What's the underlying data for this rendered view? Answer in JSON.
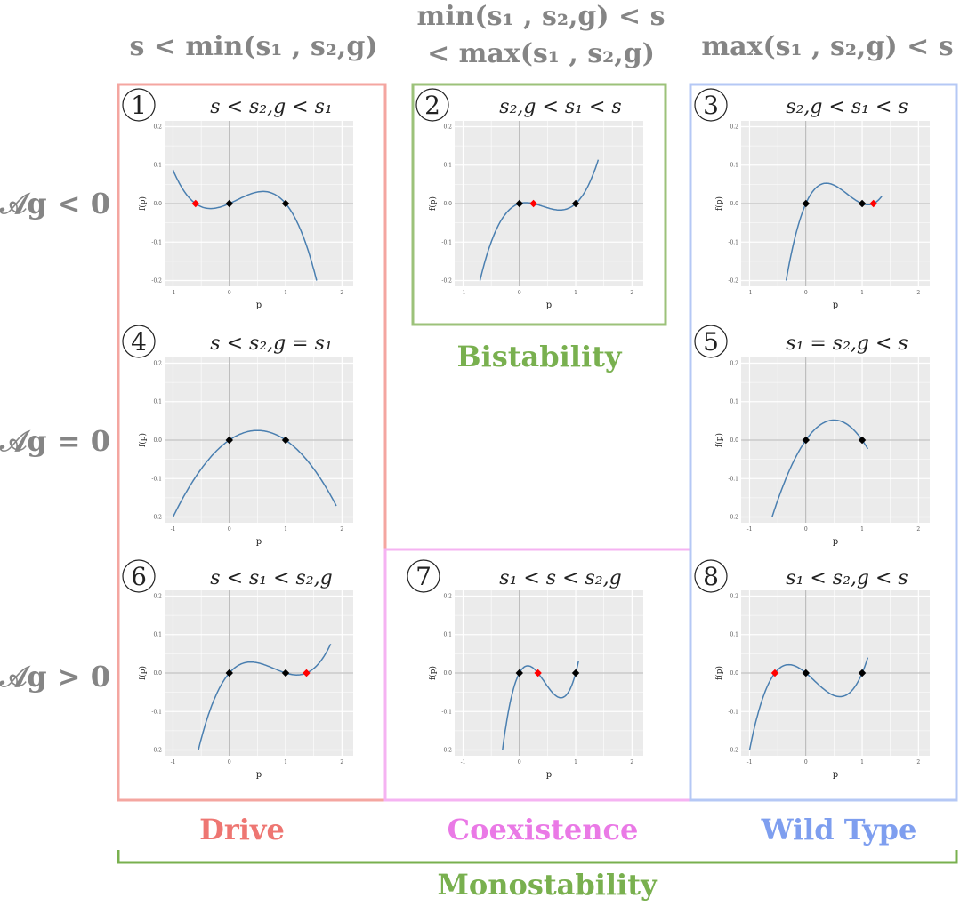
{
  "headers": {
    "col1": "s < min(s₁ , s₂,g)",
    "col2_line1": "min(s₁ , s₂,g) < s",
    "col2_line2": "< max(s₁ , s₂,g)",
    "col3": "max(s₁ , s₂,g) < s"
  },
  "row_labels": {
    "row1": "𝒜g < 0",
    "row2": "𝒜g = 0",
    "row3": "𝒜g > 0"
  },
  "region_labels": {
    "drive": "Drive",
    "coexistence": "Coexistence",
    "wild_type": "Wild Type",
    "bistability": "Bistability",
    "monostability": "Monostability"
  },
  "colors": {
    "drive": "#f4a6a0",
    "drive_text": "#ee7672",
    "bistability": "#9cc27a",
    "bistability_text": "#79b04f",
    "coexistence": "#f5b3f2",
    "coexistence_text": "#ea79e6",
    "wild_type": "#b5c8f5",
    "wild_type_text": "#7e9eef",
    "monostability": "#79b04f",
    "header_text": "#858585",
    "panel_bg": "#ebebeb",
    "curve": "#4a7fb0",
    "stable_point": "#000000",
    "unstable_point": "#ff0000"
  },
  "axis": {
    "xlabel": "p",
    "ylabel": "f(p)",
    "xticks": [
      "-1",
      "0",
      "1",
      "2"
    ],
    "yticks": [
      "0.2",
      "0.1",
      "0.0",
      "-0.1",
      "-0.2"
    ]
  },
  "panels": [
    {
      "number": "1",
      "condition": "s < s₂,g < s₁",
      "x": [
        -1,
        1.55
      ],
      "y_range": [
        -0.2,
        0.22
      ],
      "roots": {
        "black": [
          0,
          1
        ],
        "red": [
          -0.6
        ]
      }
    },
    {
      "number": "2",
      "condition": "s₂,g < s₁ < s",
      "x": [
        -0.7,
        1.4
      ],
      "y_range": [
        -0.2,
        0.22
      ],
      "roots": {
        "black": [
          0,
          1
        ],
        "red": [
          0.25
        ]
      }
    },
    {
      "number": "3",
      "condition": "s₂,g < s₁ < s",
      "x": [
        -0.35,
        1.35
      ],
      "y_range": [
        -0.2,
        0.22
      ],
      "roots": {
        "black": [
          0,
          1
        ],
        "red": [
          1.2
        ]
      }
    },
    {
      "number": "4",
      "condition": "s < s₂,g = s₁",
      "x": [
        -1,
        1.9
      ],
      "y_range": [
        -0.2,
        0.22
      ],
      "roots": {
        "black": [
          0,
          1
        ],
        "red": []
      }
    },
    {
      "number": "5",
      "condition": "s₁ = s₂,g < s",
      "x": [
        -0.6,
        1.1
      ],
      "y_range": [
        -0.2,
        0.22
      ],
      "roots": {
        "black": [
          0,
          1
        ],
        "red": []
      }
    },
    {
      "number": "6",
      "condition": "s < s₁ < s₂,g",
      "x": [
        -0.55,
        1.8
      ],
      "y_range": [
        -0.2,
        0.22
      ],
      "roots": {
        "black": [
          0,
          1
        ],
        "red": [
          1.37
        ]
      }
    },
    {
      "number": "7",
      "condition": "s₁ < s < s₂,g",
      "x": [
        -0.3,
        1.05
      ],
      "y_range": [
        -0.2,
        0.22
      ],
      "roots": {
        "black": [
          0,
          1
        ],
        "red": [
          0.33
        ]
      }
    },
    {
      "number": "8",
      "condition": "s₁ < s₂,g < s",
      "x": [
        -1,
        1.1
      ],
      "y_range": [
        -0.2,
        0.22
      ],
      "roots": {
        "black": [
          0,
          1
        ],
        "red": [
          -0.55
        ]
      }
    }
  ]
}
